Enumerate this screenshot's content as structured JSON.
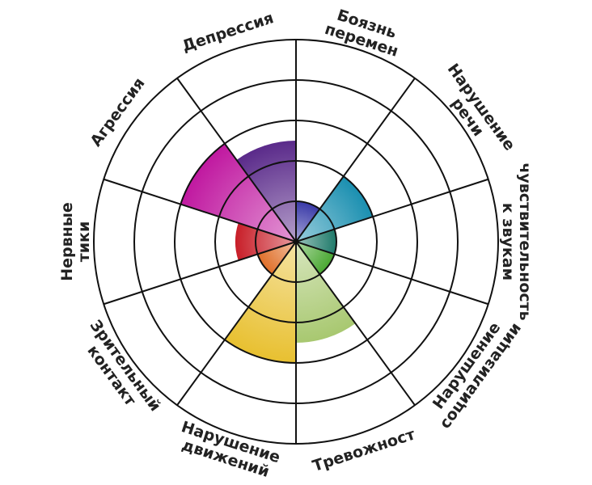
{
  "chart_data": {
    "type": "polar",
    "categories": [
      [
        "Боязнь",
        "перемен"
      ],
      [
        "Нарушение",
        "речи"
      ],
      [
        "чувствительность",
        "к звукам"
      ],
      [
        "Нарушение",
        "социализации"
      ],
      [
        "Тревожност"
      ],
      [
        "Нарушение",
        "движений"
      ],
      [
        "Зрительный",
        "контакт"
      ],
      [
        "Нервные",
        "тики"
      ],
      [
        "Агрессия"
      ],
      [
        "Депрессия"
      ]
    ],
    "values": [
      1,
      2,
      1,
      1,
      2.5,
      3,
      1,
      1.5,
      3,
      2.5
    ],
    "colors": [
      "#3a3aa8",
      "#1a8fb0",
      "#1f7a6a",
      "#4aa832",
      "#a8c870",
      "#e8c030",
      "#e0702a",
      "#c81e28",
      "#c018a0",
      "#5a2a8a"
    ],
    "rlim": [
      0,
      5
    ],
    "rticks": [
      1,
      2,
      3,
      4,
      5
    ],
    "grid": true
  }
}
